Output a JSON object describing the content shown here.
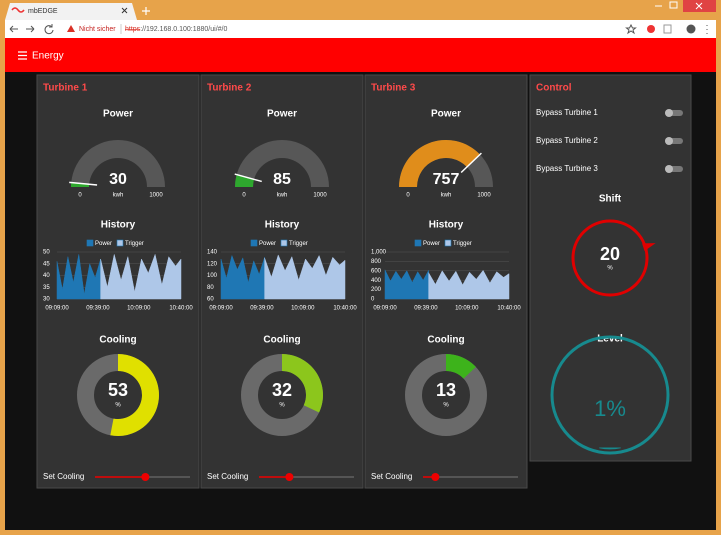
{
  "browser": {
    "tab_title": "mbEDGE",
    "security_warning": "Nicht sicher",
    "url_scheme": "https",
    "url_rest": "://192.168.0.100:1880/ui/#/0"
  },
  "header": {
    "title": "Energy"
  },
  "turbines": [
    {
      "name": "Turbine 1",
      "power": {
        "label": "Power",
        "value": 30,
        "min": 0,
        "max": 1000,
        "unit": "kwh",
        "color": "#2ea82e"
      },
      "history": {
        "label": "History",
        "x": [
          "09:09:00",
          "09:13:00",
          "09:17:00",
          "09:21:00",
          "09:25:00",
          "09:29:00",
          "09:33:00",
          "09:37:00",
          "09:41:00",
          "09:46:00",
          "09:51:00",
          "09:56:00",
          "10:01:00",
          "10:06:00",
          "10:11:00",
          "10:16:00",
          "10:21:00",
          "10:26:00",
          "10:31:00",
          "10:36:00",
          "10:40:00"
        ],
        "xlim": [
          "09:09:00",
          "10:40:00"
        ],
        "xticks": [
          "09:09:00",
          "09:39:00",
          "10:09:00",
          "10:40:00"
        ],
        "ylim": [
          30,
          50
        ],
        "yticks": [
          30,
          35,
          40,
          45,
          50
        ],
        "series": [
          {
            "name": "Power",
            "color": "#1f77b4",
            "values": [
              46,
              34,
              48,
              37,
              49,
              32,
              45,
              39,
              47,
              null,
              null,
              null,
              null,
              null,
              null,
              null,
              null,
              null,
              null,
              null,
              null
            ]
          },
          {
            "name": "Trigger",
            "color": "#aec7e8",
            "values": [
              null,
              null,
              null,
              null,
              null,
              null,
              null,
              null,
              47,
              35,
              49,
              38,
              48,
              33,
              47,
              41,
              49,
              36,
              48,
              44,
              47
            ]
          }
        ]
      },
      "cooling": {
        "label": "Cooling",
        "value": 53,
        "unit": "%",
        "color": "#e0e000"
      },
      "set_cooling": {
        "label": "Set Cooling"
      }
    },
    {
      "name": "Turbine 2",
      "power": {
        "label": "Power",
        "value": 85,
        "min": 0,
        "max": 1000,
        "unit": "kwh",
        "color": "#2ea82e"
      },
      "history": {
        "label": "History",
        "x": [
          "09:09:00",
          "09:13:00",
          "09:17:00",
          "09:21:00",
          "09:25:00",
          "09:29:00",
          "09:33:00",
          "09:37:00",
          "09:41:00",
          "09:46:00",
          "09:51:00",
          "09:56:00",
          "10:01:00",
          "10:06:00",
          "10:11:00",
          "10:16:00",
          "10:21:00",
          "10:26:00",
          "10:31:00",
          "10:36:00",
          "10:40:00"
        ],
        "xlim": [
          "09:09:00",
          "10:40:00"
        ],
        "xticks": [
          "09:09:00",
          "09:39:00",
          "10:09:00",
          "10:40:00"
        ],
        "ylim": [
          60,
          140
        ],
        "yticks": [
          60,
          80,
          100,
          120,
          140
        ],
        "series": [
          {
            "name": "Power",
            "color": "#1f77b4",
            "values": [
              128,
              95,
              134,
              110,
              130,
              88,
              125,
              102,
              131,
              null,
              null,
              null,
              null,
              null,
              null,
              null,
              null,
              null,
              null,
              null,
              null
            ]
          },
          {
            "name": "Trigger",
            "color": "#aec7e8",
            "values": [
              null,
              null,
              null,
              null,
              null,
              null,
              null,
              null,
              130,
              97,
              135,
              108,
              132,
              92,
              128,
              112,
              134,
              100,
              131,
              118,
              126
            ]
          }
        ]
      },
      "cooling": {
        "label": "Cooling",
        "value": 32,
        "unit": "%",
        "color": "#8cc61c"
      },
      "set_cooling": {
        "label": "Set Cooling"
      }
    },
    {
      "name": "Turbine 3",
      "power": {
        "label": "Power",
        "value": 757,
        "min": 0,
        "max": 1000,
        "unit": "kwh",
        "color": "#e08d1b"
      },
      "history": {
        "label": "History",
        "x": [
          "09:09:00",
          "09:13:00",
          "09:17:00",
          "09:21:00",
          "09:25:00",
          "09:29:00",
          "09:33:00",
          "09:37:00",
          "09:41:00",
          "09:46:00",
          "09:51:00",
          "09:56:00",
          "10:01:00",
          "10:06:00",
          "10:11:00",
          "10:16:00",
          "10:21:00",
          "10:26:00",
          "10:31:00",
          "10:36:00",
          "10:40:00"
        ],
        "xlim": [
          "09:09:00",
          "10:40:00"
        ],
        "xticks": [
          "09:09:00",
          "09:39:00",
          "10:09:00",
          "10:40:00"
        ],
        "ylim": [
          0,
          1000
        ],
        "yticks": [
          0,
          200,
          400,
          600,
          800,
          {
            "value": 1000,
            "label": "1,000"
          }
        ],
        "series": [
          {
            "name": "Power",
            "color": "#1f77b4",
            "values": [
              620,
              380,
              590,
              420,
              600,
              350,
              580,
              400,
              610,
              null,
              null,
              null,
              null,
              null,
              null,
              null,
              null,
              null,
              null,
              null,
              null
            ]
          },
          {
            "name": "Trigger",
            "color": "#aec7e8",
            "values": [
              null,
              null,
              null,
              null,
              null,
              null,
              null,
              null,
              560,
              310,
              600,
              380,
              590,
              300,
              570,
              420,
              610,
              340,
              580,
              460,
              540
            ]
          }
        ]
      },
      "cooling": {
        "label": "Cooling",
        "value": 13,
        "unit": "%",
        "color": "#3db31b"
      },
      "set_cooling": {
        "label": "Set Cooling"
      }
    }
  ],
  "control": {
    "title": "Control",
    "bypass": [
      {
        "label": "Bypass Turbine 1",
        "on": false
      },
      {
        "label": "Bypass Turbine 2",
        "on": false
      },
      {
        "label": "Bypass Turbine 3",
        "on": false
      }
    ],
    "shift": {
      "label": "Shift",
      "value": 20,
      "unit": "%",
      "color": "#e00000"
    },
    "level": {
      "label": "Level",
      "value": 1,
      "value_label": "1%",
      "color": "#178a8e"
    }
  }
}
